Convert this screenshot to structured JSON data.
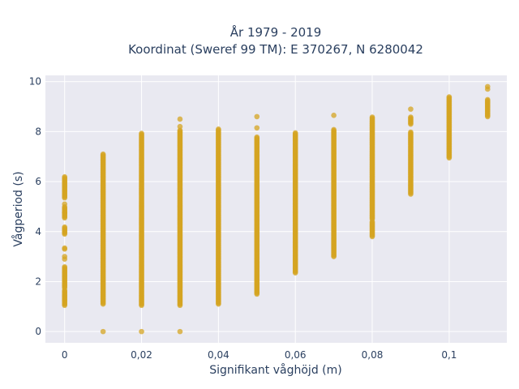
{
  "chart_data": {
    "type": "scatter",
    "title_lines": [
      "År 1979 - 2019",
      "Koordinat (Sweref 99 TM): E 370267, N 6280042"
    ],
    "xlabel": "Signifikant våghöjd (m)",
    "ylabel": "Vågperiod (s)",
    "xlim": [
      -0.005,
      0.115
    ],
    "ylim": [
      -0.45,
      10.25
    ],
    "x_ticks": [
      0,
      0.02,
      0.04,
      0.06,
      0.08,
      0.1
    ],
    "x_tick_labels": [
      "0",
      "0,02",
      "0,04",
      "0,06",
      "0,08",
      "0,1"
    ],
    "y_ticks": [
      0,
      2,
      4,
      6,
      8,
      10
    ],
    "y_tick_labels": [
      "0",
      "2",
      "4",
      "6",
      "8",
      "10"
    ],
    "grid": true,
    "background": "#e9e9f1",
    "marker_color": "#d4a421",
    "series": [
      {
        "columns": [
          {
            "x": 0,
            "ranges": [
              [
                1.05,
                1.65
              ],
              [
                1.75,
                2.6
              ],
              [
                3.3,
                3.35
              ],
              [
                3.9,
                4.2
              ],
              [
                4.55,
                5.0
              ],
              [
                5.35,
                6.2
              ]
            ],
            "points": [
              2.9,
              3.0,
              4.75,
              5.1
            ]
          },
          {
            "x": 0.01,
            "ranges": [
              [
                1.1,
                7.1
              ]
            ],
            "points": [
              0
            ]
          },
          {
            "x": 0.02,
            "ranges": [
              [
                1.05,
                7.95
              ]
            ],
            "points": [
              0
            ]
          },
          {
            "x": 0.03,
            "ranges": [
              [
                1.05,
                8.05
              ]
            ],
            "points": [
              0,
              8.2,
              8.5
            ]
          },
          {
            "x": 0.04,
            "ranges": [
              [
                1.1,
                8.1
              ]
            ],
            "points": []
          },
          {
            "x": 0.05,
            "ranges": [
              [
                1.5,
                7.8
              ]
            ],
            "points": [
              8.15,
              8.6
            ]
          },
          {
            "x": 0.06,
            "ranges": [
              [
                2.35,
                7.95
              ]
            ],
            "points": []
          },
          {
            "x": 0.07,
            "ranges": [
              [
                3.0,
                8.1
              ]
            ],
            "points": [
              8.65
            ]
          },
          {
            "x": 0.08,
            "ranges": [
              [
                3.8,
                4.4
              ],
              [
                4.5,
                8.6
              ]
            ],
            "points": []
          },
          {
            "x": 0.09,
            "ranges": [
              [
                5.5,
                8.0
              ],
              [
                8.3,
                8.6
              ]
            ],
            "points": [
              8.9
            ]
          },
          {
            "x": 0.1,
            "ranges": [
              [
                6.95,
                9.4
              ]
            ],
            "points": []
          },
          {
            "x": 0.11,
            "ranges": [
              [
                8.6,
                9.3
              ]
            ],
            "points": [
              9.7,
              9.8
            ]
          }
        ]
      }
    ]
  }
}
